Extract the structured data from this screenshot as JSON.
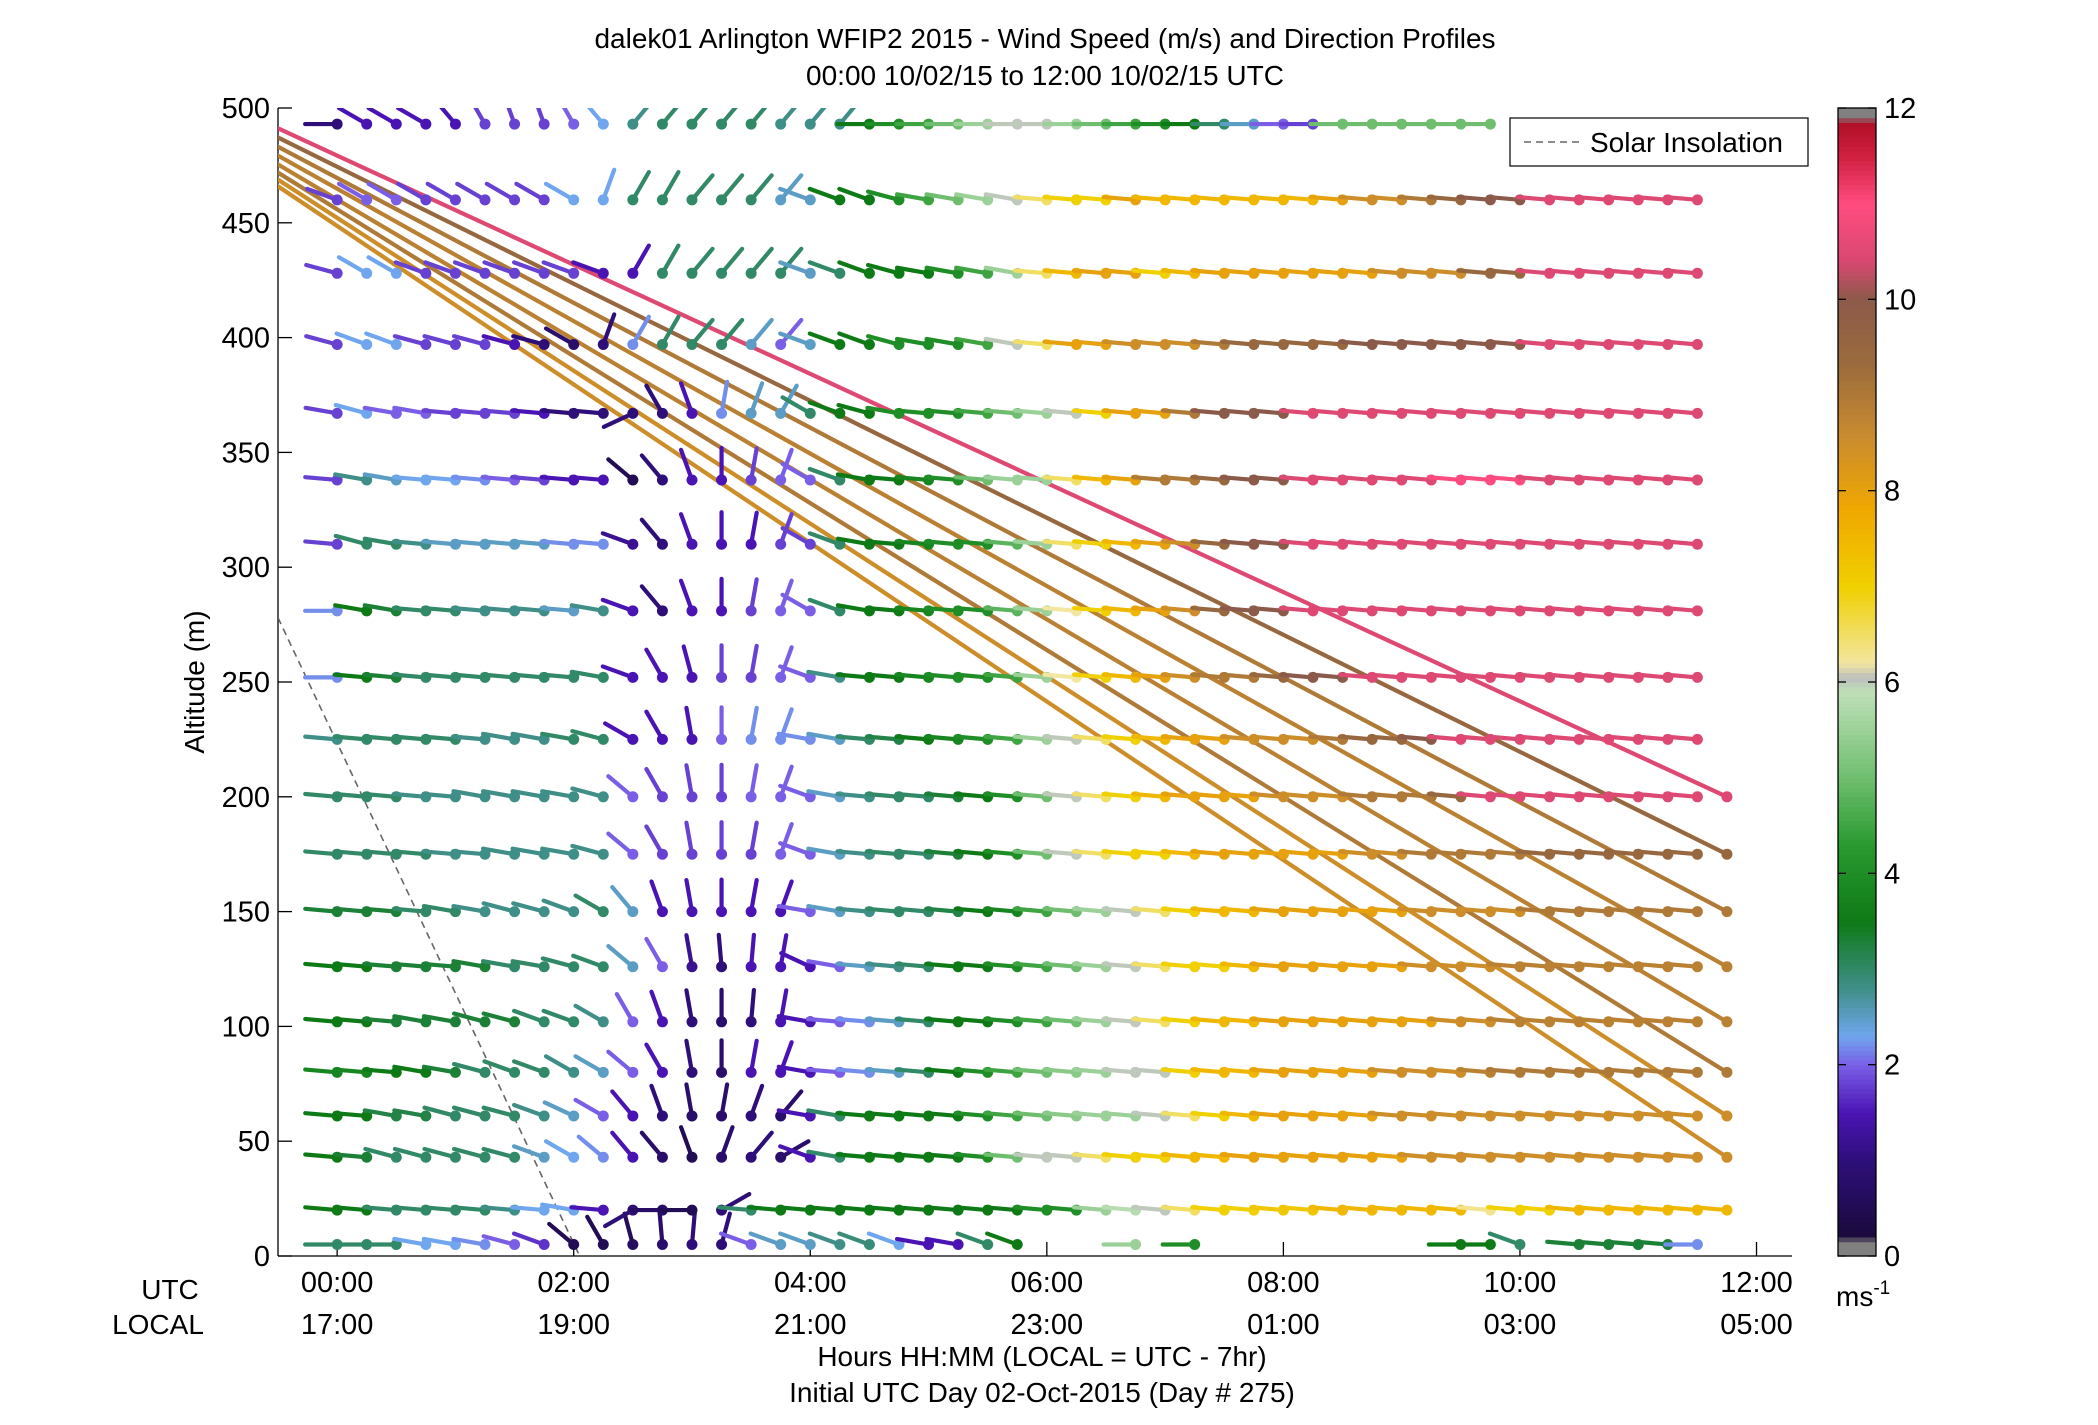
{
  "chart_data": {
    "type": "wind-barb-profile",
    "title": "dalek01 Arlington WFIP2 2015 - Wind Speed (m/s) and Direction Profiles",
    "subtitle": "00:00 10/02/15 to 12:00 10/02/15  UTC",
    "ylabel": "Altitude (m)",
    "ylim": [
      0,
      500
    ],
    "y_ticks": [
      "0",
      "50",
      "100",
      "150",
      "200",
      "250",
      "300",
      "350",
      "400",
      "450",
      "500"
    ],
    "xlim_hours": [
      -0.5,
      12.3
    ],
    "x_tick_hours": [
      0,
      2,
      4,
      6,
      8,
      10,
      12
    ],
    "x_ticks_utc": [
      "00:00",
      "02:00",
      "04:00",
      "06:00",
      "08:00",
      "10:00",
      "12:00"
    ],
    "x_ticks_local": [
      "17:00",
      "19:00",
      "21:00",
      "23:00",
      "01:00",
      "03:00",
      "05:00"
    ],
    "row_label_utc": "UTC",
    "row_label_local": "LOCAL",
    "xlabel": "Hours HH:MM  (LOCAL = UTC - 7hr)",
    "xlabel2": "Initial UTC Day 02-Oct-2015 (Day # 275)",
    "legend": {
      "label": "Solar Insolation",
      "placement": "top-right",
      "style": "dashed",
      "color": "#666666"
    },
    "solar_insolation_line": {
      "x": [
        -0.5,
        2.05
      ],
      "y": [
        278,
        0
      ]
    },
    "colorbar": {
      "min": 0,
      "max": 12,
      "ticks": [
        "0",
        "2",
        "4",
        "6",
        "8",
        "10",
        "12"
      ],
      "unit_label": "ms",
      "unit_exponent": "-1",
      "stops": [
        {
          "v": 0.0,
          "c": "#808080"
        },
        {
          "v": 0.15,
          "c": "#808080"
        },
        {
          "v": 0.2,
          "c": "#1a0a3c"
        },
        {
          "v": 1.0,
          "c": "#2e0f7a"
        },
        {
          "v": 1.5,
          "c": "#4a14b4"
        },
        {
          "v": 2.0,
          "c": "#7a5fe6"
        },
        {
          "v": 2.3,
          "c": "#6fa6ee"
        },
        {
          "v": 2.8,
          "c": "#3f8f88"
        },
        {
          "v": 3.5,
          "c": "#0e7a16"
        },
        {
          "v": 4.3,
          "c": "#2a9a30"
        },
        {
          "v": 5.0,
          "c": "#6fbe6f"
        },
        {
          "v": 5.9,
          "c": "#bfe0b8"
        },
        {
          "v": 6.05,
          "c": "#bdbdbd"
        },
        {
          "v": 6.2,
          "c": "#f2e6a0"
        },
        {
          "v": 7.0,
          "c": "#f0d000"
        },
        {
          "v": 7.8,
          "c": "#f0a800"
        },
        {
          "v": 8.6,
          "c": "#c88a30"
        },
        {
          "v": 9.3,
          "c": "#9c6c3c"
        },
        {
          "v": 10.0,
          "c": "#8c5a4a"
        },
        {
          "v": 10.4,
          "c": "#d84870"
        },
        {
          "v": 11.0,
          "c": "#ff4c80"
        },
        {
          "v": 11.5,
          "c": "#d02040"
        },
        {
          "v": 11.85,
          "c": "#b01028"
        },
        {
          "v": 11.9,
          "c": "#808080"
        },
        {
          "v": 12.0,
          "c": "#808080"
        }
      ]
    },
    "altitudes_m": [
      5,
      20,
      43,
      61,
      80,
      102,
      126,
      150,
      175,
      200,
      225,
      252,
      281,
      310,
      338,
      367,
      397,
      428,
      460,
      493
    ],
    "sample_interval_hours": 0.25,
    "sample_count": 48,
    "profiles": [
      {
        "alt": 5,
        "speed": "3 3 3 2.3 2.3 2.2 2 1.7 0.5 0.5 0.6 0.8 1 1 2 2.5 2.5 2.8 2.9 2.3 1.5 1.5 3 3.5 x x x 5.5 x 4 x x x x x x x x 3.5 3.5 3 x 3.3 3.3 3.3 3.3 2.2",
        "dir": "270 270 270 280 280 280 285 290 310 330 345 355 5 15 290 290 290 290 290 290 280 280 290 290 0 0 0 270 0 270 0 0 0 0 0 0 0 0 270 270 290 0 275 275 275 275 270"
      },
      {
        "alt": 20,
        "speed": "3.5 3.5 3 3 3 3 2.8 2.3 2.3 1.5 1 0.7 0.5 1 3 3.5 3.5 3.5 3.5 3.5 3.5 3.5 3.5 3.5 4 4 5.5 5.8 6 6.5 7 7 7.2 7.2 7.5 7.5 7.5 7.5 7.5 6.3 7 7 7.5 7.5 7.5 7.5 7.5 7.5",
        "dir": "275 275 275 275 275 275 275 275 280 275 240 270 270 60 275 275 275 275 275 275 275 275 275 275 275 275 275 275 275 275 275 275 275 275 275 275 275 275 275 275 275 275 275 275 275 275 275 275"
      },
      {
        "alt": 43,
        "speed": "3.5 3.3 3 3 3 3 3 2.5 2.3 2.2 1.5 0.8 0.5 0.8 1 0.8 1.5 3 3.5 3.5 3.5 3.5 4 5 6 6 6.5 7 7 7.5 7.5 8 8 8 8 8 8 8.5 8.5 8.5 8.5 8.5 8.5 8.5 8.5 8.5 8.5 8.5",
        "dir": "275 275 285 285 285 285 285 290 300 310 320 320 340 20 40 60 290 280 275 275 275 275 275 275 275 275 275 275 275 275 275 275 275 275 275 275 275 275 275 275 275 275 275 275 275 275 275"
      },
      {
        "alt": 61,
        "speed": "3.5 3.5 3.2 3.2 3 3 3 2.8 2.5 2 1.5 1 0.8 0.8 1 0.8 1.5 3 3.5 3.5 3.5 3.5 4 4.5 5 5.3 5.5 5.5 6 6.5 7 7.5 8 8 8 8 8.5 8.5 8.5 8.5 8.5 8.5 8.5 8.5 8.5 8.5 8.5 8.5",
        "dir": "275 275 280 280 285 285 285 290 295 300 320 340 350 10 20 40 280 280 275 275 275 275 275 275 275 275 275 275 275 275 275 275 275 275 275 275 275 275 275 275 275 275 275 275 275 275 275"
      },
      {
        "alt": 80,
        "speed": "3.8 3.8 3.5 3.5 3.3 3 3 3 2.8 2.5 2 1.5 1 0.8 1.5 1.5 1.5 2 2.2 2.5 3 3.5 4 4.5 5 5.3 5.5 6 6 7 7.5 7.5 8 8 8 8 8.5 8.5 8.5 8.8 9 9 9 9 9 9 9 9",
        "dir": "275 275 275 280 280 285 290 290 300 300 310 330 350 0 10 20 280 275 275 275 275 275 275 275 275 275 275 275 275 275 275 275 275 275 275 275 275 275 275 275 275 275 275 275 275 275 275"
      },
      {
        "alt": 102,
        "speed": "3.5 3.5 3.3 3.3 3.3 3.3 3.3 3 3 2.8 2 1.5 1 0.8 1 1.5 1.5 2 2.2 2.5 3 3.5 3.5 4 4.5 5 5.5 6 6.5 7 7.5 7.5 8 8 8 8 8 8 8.5 8.5 8.8 8.8 8.8 8.8 8.8 8.8 8.8 8.8",
        "dir": "275 275 275 280 280 285 285 290 290 300 330 340 350 0 5 10 280 275 275 275 275 275 275 275 275 275 275 275 275 275 275 275 275 275 275 275 275 275 275 275 275 275 275 275 275 275 275"
      },
      {
        "alt": 126,
        "speed": "3.5 3.5 3.3 3.3 3.3 3.3 3 3 3 3 2.5 2 1.2 1 1.5 1.5 1.5 2 2.5 2.8 3 3.5 3.5 4 4.5 5 5.5 6 6.5 7 7 7.5 8 8 8 8 8 8.5 8.5 8.5 8.8 8.8 8.8 8.8 8.8 8.8 8.8 8.8",
        "dir": "275 275 275 275 275 280 280 280 285 290 310 330 350 355 5 10 295 280 275 275 275 275 275 275 275 275 275 275 275 275 275 275 275 275 275 275 275 275 275 275 275 275 275 275 275 275 275"
      },
      {
        "alt": 150,
        "speed": "3.3 3.3 3.3 3 3 2.8 2.8 2.8 2.8 3 2.5 1.5 1.5 1.5 1.5 1.5 2 2.5 2.8 3 3 3.2 3.5 3.8 4.5 5 5.5 6 6.5 7 7.5 7.5 8 8 8 8 8 8.5 8.5 8.5 8.5 9 9 9 9 9 9 9",
        "dir": "275 275 275 275 280 280 285 285 290 300 320 340 350 0 10 20 280 280 275 275 275 275 275 275 275 275 275 275 275 275 275 275 275 275 275 275 275 275 275 275 275 275 275 275 275 275 275"
      },
      {
        "alt": 175,
        "speed": "3 3 3 3 2.8 2.8 2.8 2.8 2.8 2.8 2 1.8 1.8 1.8 1.8 2 2 2.5 2.8 3 3 3.3 3.5 4 5 6 6.5 7 7 7.5 8 8 8 8 8 8.5 8.5 9 9 9 9 9.5 9.5 9.5 9.5 9.5 9.5 9.5",
        "dir": "275 275 275 275 275 275 280 280 280 285 310 330 350 0 10 20 290 280 275 275 275 275 275 275 275 275 275 275 275 275 275 275 275 275 275 275 275 275 275 275 275 275 275 275 275 275 275"
      },
      {
        "alt": 200,
        "speed": "3 3 3 2.8 2.8 2.8 2.8 2.8 2.8 2.8 2 1.8 1.8 1.8 2 2 2 2.5 2.8 3 3 3.3 3.5 4 5 6 6.5 7 7.5 8 8 8 8.5 8.5 8.5 9 9 9 9.5 10.5 10.5 10.5 10.5 10.5 10.5 10.5 10.5 10.5",
        "dir": "275 275 275 275 275 280 280 280 280 285 310 330 350 0 10 20 290 280 275 275 275 275 275 275 275 275 275 275 275 275 275 275 275 275 275 275 275 275 275 275 275 275 275 275 275 275 275"
      },
      {
        "alt": 225,
        "speed": "2.8 3 3 3 3 2.8 2.8 2.8 3 3 1.5 1.5 1.5 2 2.2 2.2 2.2 2.5 3 3.2 3.5 3.8 4 4.5 5.5 6 6.5 7 7.5 8 8 8.5 8.5 8.5 9 9.5 9.5 10 10.5 10.5 10.5 10.5 10.5 10.5 10.5 10.5 10.5",
        "dir": "275 275 275 275 275 275 280 280 280 285 300 330 350 0 10 20 280 280 275 275 275 275 275 275 275 275 275 275 275 275 275 275 275 275 275 275 275 275 275 275 275 275 275 275 275 275 275"
      },
      {
        "alt": 252,
        "speed": "2.2 3.5 3.3 3 3 3 3 3 3 3 1.5 1.5 1.5 1.8 1.8 2 2 2.8 3.5 3.5 3.8 4 4 4.5 5.5 6.2 7 7.5 8 8.5 9 9 9.5 10 10 10.5 10.5 10.5 10.5 10.5 10.5 10.5 10.5 10.5 10.5 10.5 10.5",
        "dir": "270 275 275 275 275 275 275 275 275 280 290 330 345 0 10 20 290 280 275 275 275 275 275 275 275 275 275 275 275 275 275 275 275 275 275 275 275 275 275 275 275 275 275 275 275 275 275"
      },
      {
        "alt": 281,
        "speed": "2.2 3.5 3.3 3 3 2.8 2.8 2.8 2.5 2.8 1.5 1 1.5 1.5 1.8 2 2 3 3.5 3.5 3.8 4 4 4.8 5.5 6.2 7 7.5 8 8.5 9.5 10 10 10.5 10.5 10.5 10.5 10.5 10.5 10.5 10.5 10.5 10.5 10.5 10.5 10.5 10.5",
        "dir": "270 280 280 275 275 275 275 275 275 280 290 320 340 0 10 20 300 290 280 275 275 275 275 275 275 275 275 275 275 275 275 275 275 275 275 275 275 275 275 275 275 275 275 275 275 275 275"
      },
      {
        "alt": 310,
        "speed": "1.8 3 3 2.8 2.5 2.5 2.5 2.5 2.2 2.2 1.2 1 1.5 1.5 1.5 1.8 1.8 3 3.5 3.5 3.8 4 4 4.8 5.5 6.5 7 7.5 8 8.5 9.5 10 10 10.5 10.5 10.5 10.5 10.5 10.5 10.5 10.5 10.5 10.5 10.5 10.5 10.5 10.5",
        "dir": "275 285 280 275 275 275 275 275 275 275 290 320 340 0 10 20 300 290 280 275 275 275 275 275 275 275 275 275 275 275 275 275 275 275 275 275 275 275 275 275 275 275 275 275 275 275 275"
      },
      {
        "alt": 338,
        "speed": "1.8 2.8 2.5 2.3 2.3 2.2 2 1.8 1.5 1.5 0.5 1 1.5 1.5 1.8 2 2 3 3.5 3.5 3.8 4 5 5.5 5.5 6.5 7.5 8 9 9 9.5 10 10 10.5 10.5 10.5 10.5 10.5 11 11 11 10.5 10.5 10.5 10.5 10.5 10.5",
        "dir": "275 280 280 275 275 275 275 275 275 275 310 320 340 0 10 20 300 290 280 275 275 275 275 275 275 275 275 275 275 275 275 275 275 275 275 275 275 275 275 275 275 275 275 275 275 275 275"
      },
      {
        "alt": 367,
        "speed": "1.8 2.3 2 2 1.8 1.8 1.8 1.5 1 1 1 1 1.5 2.2 2.5 2.5 3 3.5 3.5 4 4 4 4.5 5 5.5 6 7 8 8 9 10 10 10 10.5 10.5 10.5 10.5 10.5 10.5 10.5 10.5 10.5 10.5 10.5 10.5 10.5 10.5",
        "dir": "280 285 280 280 275 275 275 275 275 275 245 330 340 10 20 30 300 290 285 280 275 275 275 275 275 275 275 275 275 275 275 275 275 275 275 275 275 275 275 275 275 275 275 275 275 275 275"
      },
      {
        "alt": 397,
        "speed": "1.8 2.3 2.3 1.8 1.8 1.8 1.5 1 0.8 1 2.2 3 3 3 2.5 2 2.5 3.5 3.5 4 4 4 4.5 6 6.5 8 8 8.5 8.5 8.5 9 9.5 9.5 9.5 9.5 10 10 10 10 10 10 10.5 10.5 10.5 10.5 10.5 10.5",
        "dir": "285 290 290 285 285 285 285 285 300 20 30 30 40 40 40 40 290 290 290 285 280 280 280 280 275 275 275 275 275 275 275 275 275 275 275 275 275 275 275 275 275 275 275 275 275 275 275"
      },
      {
        "alt": 428,
        "speed": "1.8 2.3 2.3 1.8 1.8 1.8 1.8 1.8 1.8 1.5 1.5 3 3 3 3 3 2.5 3 3.5 3.5 3.5 4 4.5 5.5 6.5 7.5 8 8 7 7.5 8 8 8 8 8 8 8.5 8.5 8.5 9.5 9.5 10.5 10.5 10.5 10.5 10.5 10.5",
        "dir": "285 300 300 290 290 290 290 290 290 290 30 30 40 40 40 40 290 290 290 285 280 280 280 280 275 275 275 275 275 275 275 275 275 275 275 275 275 275 275 275 275 275 275 275 275 275 275"
      },
      {
        "alt": 460,
        "speed": "1.8 2 2 1.8 1.8 1.8 1.8 1.8 2.3 2.3 3 3 3 3 3 2.5 2.5 3.5 3.5 4 4.5 5 5.5 6 6.5 7 7 8 7.5 7.5 7.5 7.5 7.5 7.5 8 8.5 8.5 9 9.5 10 10 10.5 10.5 10.5 10.5 10.5 10.5",
        "dir": "290 300 300 300 300 300 300 300 300 20 30 30 40 40 40 40 290 290 290 285 280 280 280 280 275 275 275 275 275 275 275 275 275 275 275 275 275 275 275 275 275 275 275 275 275 275 275"
      },
      {
        "alt": 493,
        "speed": "1 1.5 1.5 1.5 1.5 1.8 1.8 1.8 2 2.3 2.8 3 3 3 3 2.8 2.8 2.8 3.5 4 4.5 5 5.5 6 6 5.5 5 4.5 4 3.5 3 2.5 2 1.8 5 5 5 5 5 5 x x x x x x x",
        "dir": "270 300 300 300 320 330 340 340 330 320 40 40 40 40 40 40 40 40 270 270 270 270 270 270 270 270 270 270 270 270 270 270 270 270 270 270 270 270 270 270 0 0 0 0 0 0 0"
      }
    ]
  }
}
